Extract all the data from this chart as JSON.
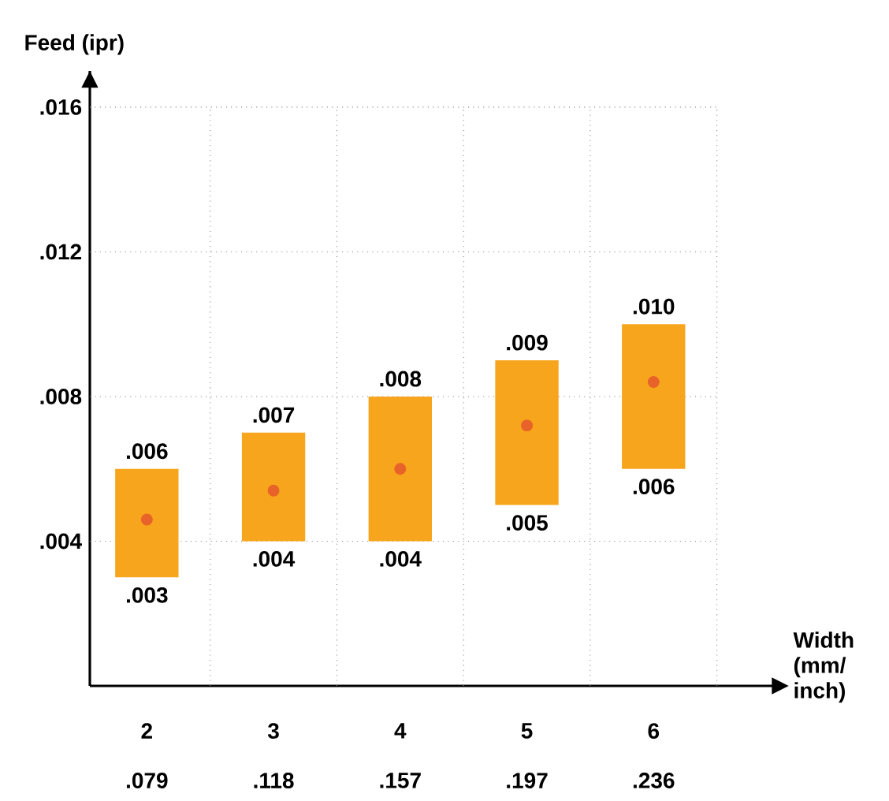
{
  "chart_data": {
    "type": "bar",
    "xlabel": "Width (mm/ inch)",
    "ylabel": "Feed (ipr)",
    "categories": [
      "2",
      "3",
      "4",
      "5",
      "6"
    ],
    "base": [
      0.003,
      0.004,
      0.004,
      0.005,
      0.006
    ],
    "values": [
      0.003,
      0.003,
      0.004,
      0.004,
      0.004
    ],
    "color": "#f7a51c",
    "series": [
      {
        "type": "scatter",
        "x": [
          "2",
          "3",
          "4",
          "5",
          "6"
        ],
        "values": [
          0.0046,
          0.0054,
          0.006,
          0.0072,
          0.0084
        ],
        "color": "#e8632a"
      }
    ],
    "ylim": [
      0,
      0.017
    ],
    "yticks": [
      {
        "value": 0.004,
        "label": ".004"
      },
      {
        "value": 0.008,
        "label": ".008"
      },
      {
        "value": 0.012,
        "label": ".012"
      },
      {
        "value": 0.016,
        "label": ".016"
      }
    ],
    "grid": true,
    "annotations": [
      {
        "text": ".006",
        "x": "2",
        "y": 0.006
      },
      {
        "text": ".003",
        "x": "2",
        "y": 0.003
      },
      {
        "text": ".007",
        "x": "3",
        "y": 0.007
      },
      {
        "text": ".004",
        "x": "3",
        "y": 0.004
      },
      {
        "text": ".008",
        "x": "4",
        "y": 0.008
      },
      {
        "text": ".004",
        "x": "4",
        "y": 0.004
      },
      {
        "text": ".009",
        "x": "5",
        "y": 0.009
      },
      {
        "text": ".005",
        "x": "5",
        "y": 0.005
      },
      {
        "text": ".010",
        "x": "6",
        "y": 0.01
      },
      {
        "text": ".006",
        "x": "6",
        "y": 0.006
      },
      ".079",
      ".118",
      ".157",
      ".197",
      ".236"
    ]
  }
}
